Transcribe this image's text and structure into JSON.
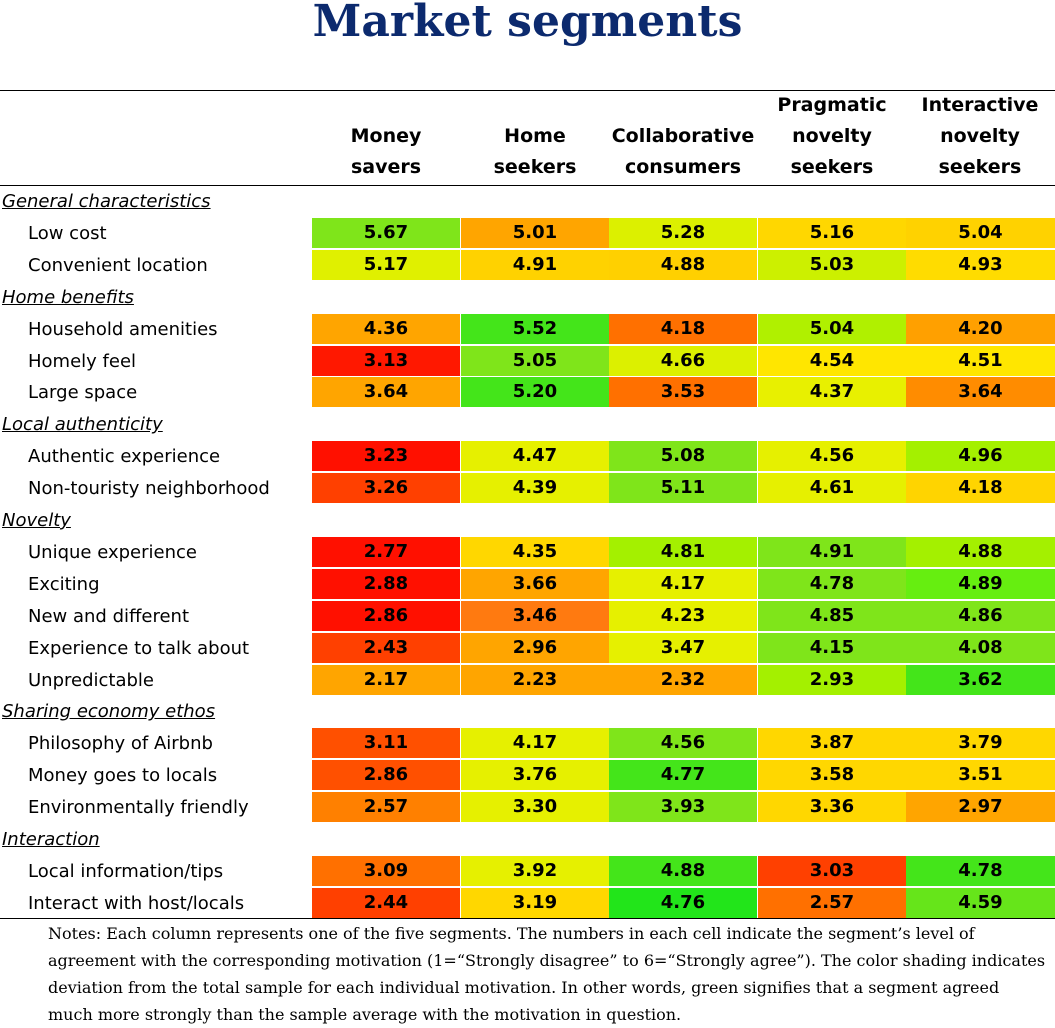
{
  "title": "Market segments",
  "notes": "Notes: Each column represents one of the five segments. The numbers in each cell indicate the segment’s level of agreement with the corresponding motivation (1=“Strongly disagree” to 6=“Strongly agree”). The color shading indicates deviation from the total sample for each individual motivation. In other words, green signifies that a segment agreed much more strongly than the sample average with the motivation in question.",
  "chart_data": {
    "type": "heatmap",
    "title": "Market segments",
    "columns": [
      "Money\nsavers",
      "Home\nseekers",
      "Collaborative\nconsumers",
      "Pragmatic\nnovelty\nseekers",
      "Interactive\nnovelty\nseekers"
    ],
    "groups": [
      {
        "name": "General characteristics",
        "rows": [
          {
            "label": "Low cost",
            "values": [
              "5.67",
              "5.01",
              "5.28",
              "5.16",
              "5.04"
            ],
            "colors": [
              "#7fe51a",
              "#ffa500",
              "#dcf000",
              "#ffd700",
              "#ffd200"
            ]
          },
          {
            "label": "Convenient location",
            "values": [
              "5.17",
              "4.91",
              "4.88",
              "5.03",
              "4.93"
            ],
            "colors": [
              "#e0f000",
              "#ffd200",
              "#ffd000",
              "#ccf000",
              "#ffdc00"
            ]
          }
        ]
      },
      {
        "name": "Home benefits",
        "rows": [
          {
            "label": "Household amenities",
            "values": [
              "4.36",
              "5.52",
              "4.18",
              "5.04",
              "4.20"
            ],
            "colors": [
              "#ffa500",
              "#44e51a",
              "#ff7000",
              "#b0f000",
              "#ffa000"
            ]
          },
          {
            "label": "Homely feel",
            "values": [
              "3.13",
              "5.05",
              "4.66",
              "4.54",
              "4.51"
            ],
            "colors": [
              "#ff1800",
              "#7fe51a",
              "#dcf000",
              "#ffe600",
              "#ffe600"
            ]
          },
          {
            "label": "Large space",
            "values": [
              "3.64",
              "5.20",
              "3.53",
              "4.37",
              "3.64"
            ],
            "colors": [
              "#ffa500",
              "#44e51a",
              "#ff7000",
              "#e8f000",
              "#ff8c00"
            ]
          }
        ]
      },
      {
        "name": "Local authenticity",
        "rows": [
          {
            "label": "Authentic experience",
            "values": [
              "3.23",
              "4.47",
              "5.08",
              "4.56",
              "4.96"
            ],
            "colors": [
              "#ff1000",
              "#e6f000",
              "#7fe51a",
              "#e6f000",
              "#a4f000"
            ]
          },
          {
            "label": "Non-touristy neighborhood",
            "values": [
              "3.26",
              "4.39",
              "5.11",
              "4.61",
              "4.18"
            ],
            "colors": [
              "#ff4000",
              "#e6f000",
              "#7fe51a",
              "#e6f000",
              "#ffd400"
            ]
          }
        ]
      },
      {
        "name": "Novelty",
        "rows": [
          {
            "label": "Unique experience",
            "values": [
              "2.77",
              "4.35",
              "4.81",
              "4.91",
              "4.88"
            ],
            "colors": [
              "#ff1000",
              "#ffd700",
              "#a4f000",
              "#7fe51a",
              "#a4f000"
            ]
          },
          {
            "label": "Exciting",
            "values": [
              "2.88",
              "3.66",
              "4.17",
              "4.78",
              "4.89"
            ],
            "colors": [
              "#ff1000",
              "#ffa500",
              "#e6f000",
              "#7fe51a",
              "#66ee10"
            ]
          },
          {
            "label": "New and different",
            "values": [
              "2.86",
              "3.46",
              "4.23",
              "4.85",
              "4.86"
            ],
            "colors": [
              "#ff1000",
              "#ff7a10",
              "#e6f000",
              "#7fe51a",
              "#7fe51a"
            ]
          },
          {
            "label": "Experience to talk about",
            "values": [
              "2.43",
              "2.96",
              "3.47",
              "4.15",
              "4.08"
            ],
            "colors": [
              "#ff4000",
              "#ffa500",
              "#e6f000",
              "#7fe51a",
              "#7fe51a"
            ]
          },
          {
            "label": "Unpredictable",
            "values": [
              "2.17",
              "2.23",
              "2.32",
              "2.93",
              "3.62"
            ],
            "colors": [
              "#ffa500",
              "#ffa500",
              "#ffa500",
              "#a4f000",
              "#44e51a"
            ]
          }
        ]
      },
      {
        "name": "Sharing economy ethos",
        "rows": [
          {
            "label": "Philosophy of Airbnb",
            "values": [
              "3.11",
              "4.17",
              "4.56",
              "3.87",
              "3.79"
            ],
            "colors": [
              "#ff5000",
              "#e6f000",
              "#7fe51a",
              "#ffd700",
              "#ffd700"
            ]
          },
          {
            "label": "Money goes to locals",
            "values": [
              "2.86",
              "3.76",
              "4.77",
              "3.58",
              "3.51"
            ],
            "colors": [
              "#ff5000",
              "#e6f000",
              "#44e51a",
              "#ffd700",
              "#ffd700"
            ]
          },
          {
            "label": "Environmentally friendly",
            "values": [
              "2.57",
              "3.30",
              "3.93",
              "3.36",
              "2.97"
            ],
            "colors": [
              "#ff8000",
              "#e6f000",
              "#7fe51a",
              "#ffd700",
              "#ffa500"
            ]
          }
        ]
      },
      {
        "name": "Interaction",
        "rows": [
          {
            "label": "Local information/tips",
            "values": [
              "3.09",
              "3.92",
              "4.88",
              "3.03",
              "4.78"
            ],
            "colors": [
              "#ff7000",
              "#e6f000",
              "#44e51a",
              "#ff4000",
              "#44e51a"
            ]
          },
          {
            "label": "Interact with host/locals",
            "values": [
              "2.44",
              "3.19",
              "4.76",
              "2.57",
              "4.59"
            ],
            "colors": [
              "#ff4000",
              "#ffd700",
              "#22e51a",
              "#ff7000",
              "#66e51a"
            ]
          }
        ]
      }
    ]
  }
}
